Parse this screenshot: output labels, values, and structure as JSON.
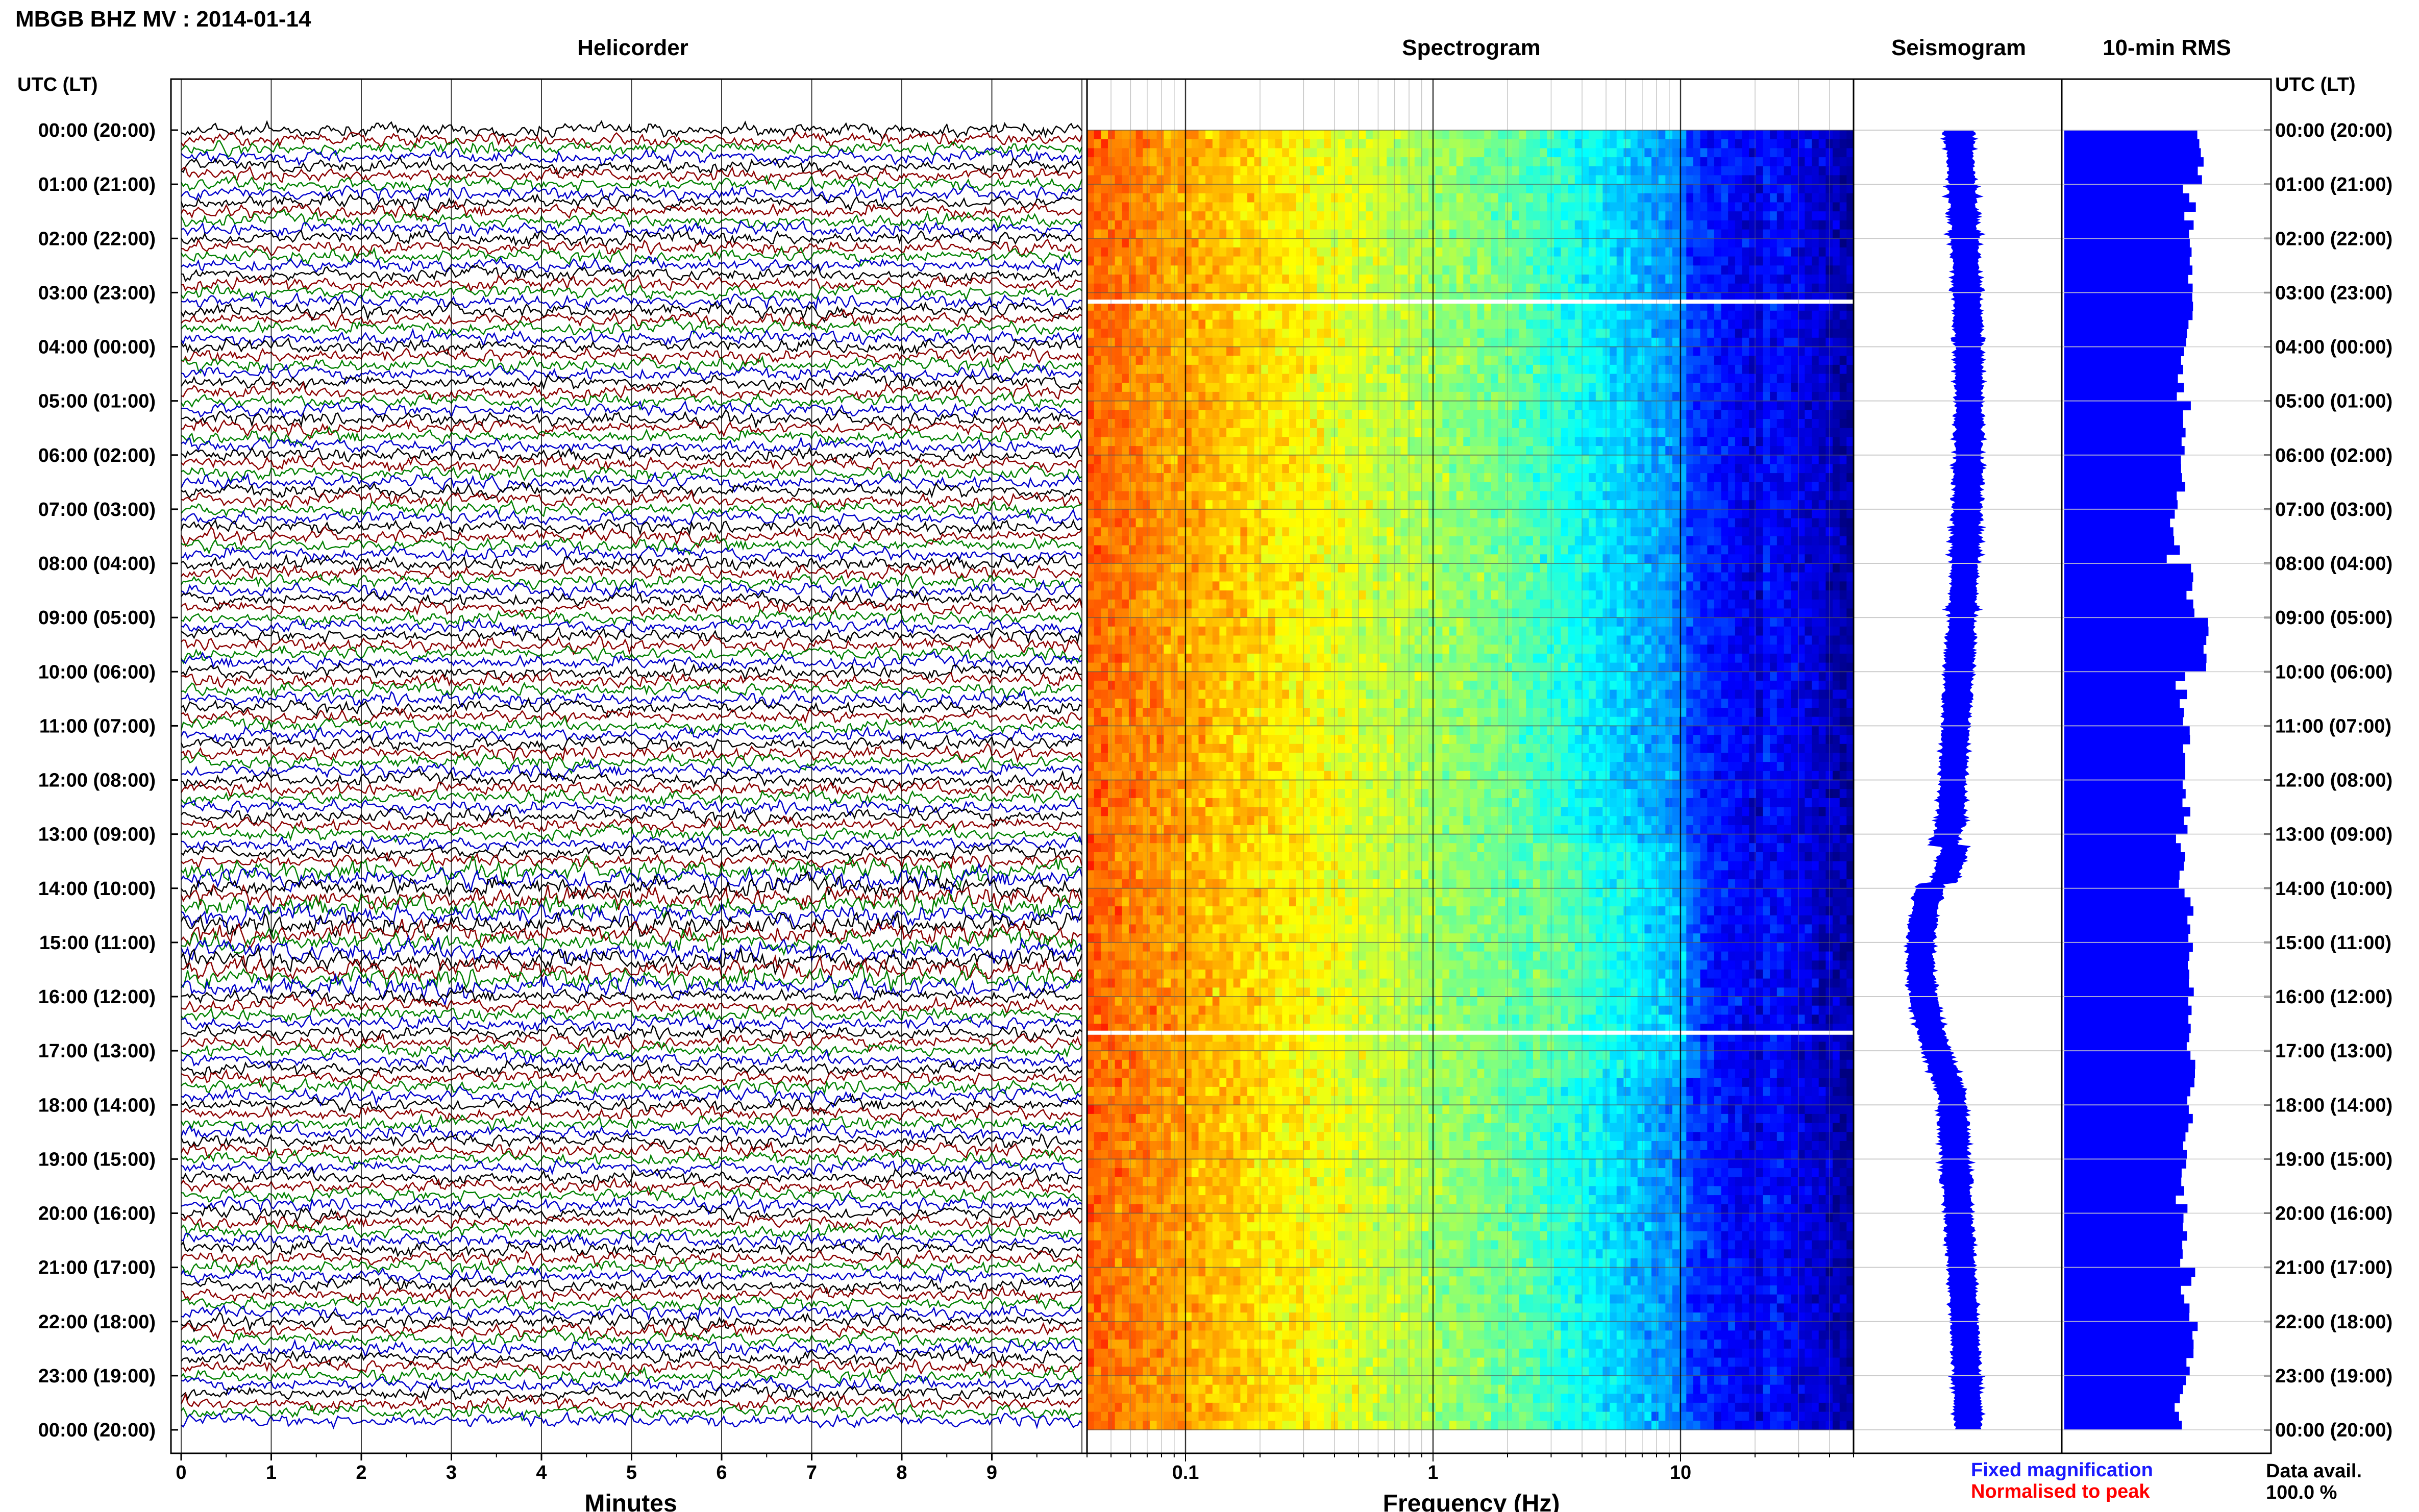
{
  "figure": {
    "title": "MBGB BHZ MV : 2014-01-14",
    "utc_header_left": "UTC (LT)",
    "utc_header_right": "UTC (LT)",
    "footer_fixed": "Fixed magnification",
    "footer_normalised": "Normalised to peak",
    "data_avail_label": "Data avail.",
    "data_avail_value": "100.0 %",
    "colors": {
      "fixed": "#1a1aff",
      "normalised": "#ff0000",
      "rms": "#0000ff",
      "seismogram": "#0000ff",
      "helicorder_traces": [
        "#000000",
        "#8b0000",
        "#008000",
        "#0000cc"
      ]
    }
  },
  "hour_labels": [
    "00:00 (20:00)",
    "01:00 (21:00)",
    "02:00 (22:00)",
    "03:00 (23:00)",
    "04:00 (00:00)",
    "05:00 (01:00)",
    "06:00 (02:00)",
    "07:00 (03:00)",
    "08:00 (04:00)",
    "09:00 (05:00)",
    "10:00 (06:00)",
    "11:00 (07:00)",
    "12:00 (08:00)",
    "13:00 (09:00)",
    "14:00 (10:00)",
    "15:00 (11:00)",
    "16:00 (12:00)",
    "17:00 (13:00)",
    "18:00 (14:00)",
    "19:00 (15:00)",
    "20:00 (16:00)",
    "21:00 (17:00)",
    "22:00 (18:00)",
    "23:00 (19:00)",
    "00:00 (20:00)"
  ],
  "chart_data": [
    {
      "type": "line",
      "title": "Helicorder",
      "xlabel": "Minutes",
      "xlim": [
        0,
        10
      ],
      "x_ticks": [
        "0",
        "1",
        "2",
        "3",
        "4",
        "5",
        "6",
        "7",
        "8",
        "9"
      ],
      "rows": 144,
      "row_minutes": 10,
      "trace_color_cycle": [
        "black",
        "darkred",
        "green",
        "blue"
      ],
      "noisy_rows_hours": [
        14,
        15
      ]
    },
    {
      "type": "heatmap",
      "title": "Spectrogram",
      "xlabel": "Frequency (Hz)",
      "x_scale": "log",
      "xlim": [
        0.04,
        50
      ],
      "x_ticks": [
        "0.1",
        "1",
        "10"
      ],
      "gap_times_utc": [
        "03:10",
        "16:40"
      ],
      "colormap": "jet"
    },
    {
      "type": "line",
      "title": "Seismogram",
      "orientation": "vertical",
      "color": "blue",
      "note": "long-period trace, largest swing between 13:00 and 17:30 UTC"
    },
    {
      "type": "bar",
      "title": "10-min RMS",
      "orientation": "horizontal",
      "color": "blue",
      "bins": 144,
      "relative_values_by_hour": [
        0.8,
        0.76,
        0.76,
        0.74,
        0.7,
        0.72,
        0.7,
        0.64,
        0.74,
        0.84,
        0.7,
        0.72,
        0.72,
        0.7,
        0.76,
        0.74,
        0.74,
        0.76,
        0.72,
        0.7,
        0.7,
        0.74,
        0.76,
        0.7
      ]
    }
  ]
}
